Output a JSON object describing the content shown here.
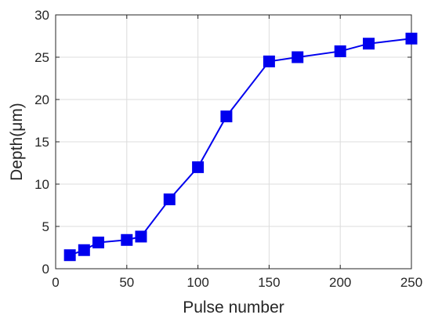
{
  "chart_data": {
    "type": "line",
    "title": "",
    "xlabel": "Pulse number",
    "ylabel": "Depth(μm)",
    "xlim": [
      0,
      250
    ],
    "ylim": [
      0,
      30
    ],
    "xticks": [
      0,
      50,
      100,
      150,
      200,
      250
    ],
    "yticks": [
      0,
      5,
      10,
      15,
      20,
      25,
      30
    ],
    "grid": true,
    "series": [
      {
        "marker": "square",
        "color": "#0000ee",
        "x": [
          10,
          20,
          30,
          50,
          60,
          80,
          100,
          120,
          150,
          170,
          200,
          220,
          250
        ],
        "y": [
          1.6,
          2.2,
          3.1,
          3.4,
          3.8,
          8.2,
          12.0,
          18.0,
          24.5,
          25.0,
          25.7,
          26.6,
          27.2
        ]
      }
    ]
  }
}
